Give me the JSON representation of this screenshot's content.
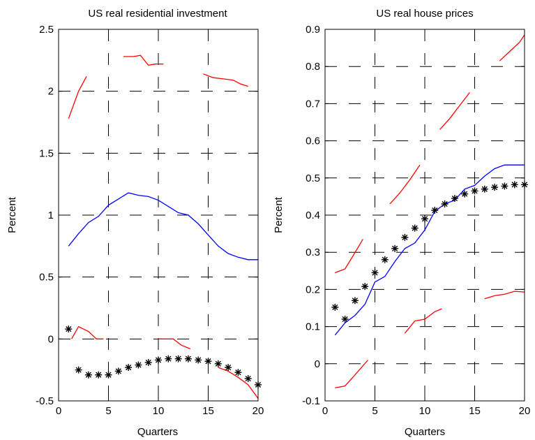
{
  "chart_data": [
    {
      "type": "line",
      "title": "US real residential investment",
      "xlabel": "Quarters",
      "ylabel": "Percent",
      "xlim": [
        0,
        20
      ],
      "ylim": [
        -0.5,
        2.5
      ],
      "xticks": [
        "0",
        "5",
        "10",
        "15",
        "20"
      ],
      "yticks": [
        "-0.5",
        "0",
        "0.5",
        "1",
        "1.5",
        "2",
        "2.5"
      ],
      "xtick_values": [
        0,
        5,
        10,
        15,
        20
      ],
      "ytick_values": [
        -0.5,
        0,
        0.5,
        1,
        1.5,
        2,
        2.5
      ],
      "grid": true,
      "colors": {
        "median": "#0000ff",
        "bands": "#ff0000",
        "markers": "#000000"
      },
      "series": [
        {
          "style": "blue-line",
          "x": [
            1,
            2,
            3,
            4,
            5,
            6,
            7,
            8,
            9,
            10,
            11,
            12,
            13,
            14,
            15,
            16,
            17,
            18,
            19,
            20
          ],
          "y": [
            0.75,
            0.85,
            0.94,
            0.99,
            1.08,
            1.13,
            1.18,
            1.16,
            1.15,
            1.12,
            1.07,
            1.02,
            1.0,
            0.93,
            0.84,
            0.75,
            0.69,
            0.66,
            0.64,
            0.64
          ]
        },
        {
          "style": "red-line",
          "segments": [
            {
              "x": [
                1,
                2,
                2.8
              ],
              "y": [
                1.78,
                2.0,
                2.12
              ]
            },
            {
              "x": [
                6.5,
                7.5,
                8.2,
                9,
                9.7,
                10.5
              ],
              "y": [
                2.28,
                2.28,
                2.29,
                2.21,
                2.22,
                2.22
              ]
            },
            {
              "x": [
                14.5,
                15.5,
                16.5,
                17.5,
                18.2,
                19
              ],
              "y": [
                2.14,
                2.11,
                2.1,
                2.09,
                2.06,
                2.04
              ]
            },
            {
              "x": [
                1.3,
                2,
                3,
                3.8,
                4.5
              ],
              "y": [
                0.0,
                0.1,
                0.06,
                0.0,
                0.0
              ]
            },
            {
              "x": [
                10,
                11,
                11.5,
                12.3,
                13.2
              ],
              "y": [
                0.0,
                0.0,
                0.0,
                -0.05,
                -0.08
              ]
            },
            {
              "x": [
                16,
                17,
                18,
                19,
                20
              ],
              "y": [
                -0.23,
                -0.26,
                -0.31,
                -0.37,
                -0.48
              ]
            }
          ]
        },
        {
          "style": "star-markers",
          "x": [
            1,
            2,
            3,
            4,
            5,
            6,
            7,
            8,
            9,
            10,
            11,
            12,
            13,
            14,
            15,
            16,
            17,
            18,
            19,
            20
          ],
          "y": [
            0.08,
            -0.25,
            -0.29,
            -0.29,
            -0.29,
            -0.26,
            -0.23,
            -0.21,
            -0.19,
            -0.17,
            -0.16,
            -0.16,
            -0.16,
            -0.17,
            -0.18,
            -0.2,
            -0.23,
            -0.27,
            -0.32,
            -0.37
          ]
        }
      ]
    },
    {
      "type": "line",
      "title": "US real house prices",
      "xlabel": "Quarters",
      "ylabel": "Percent",
      "xlim": [
        0,
        20
      ],
      "ylim": [
        -0.1,
        0.9
      ],
      "xticks": [
        "0",
        "5",
        "10",
        "15",
        "20"
      ],
      "yticks": [
        "-0.1",
        "0",
        "0.1",
        "0.2",
        "0.3",
        "0.4",
        "0.5",
        "0.6",
        "0.7",
        "0.8",
        "0.9"
      ],
      "xtick_values": [
        0,
        5,
        10,
        15,
        20
      ],
      "ytick_values": [
        -0.1,
        0,
        0.1,
        0.2,
        0.3,
        0.4,
        0.5,
        0.6,
        0.7,
        0.8,
        0.9
      ],
      "grid": true,
      "colors": {
        "median": "#0000ff",
        "bands": "#ff0000",
        "markers": "#000000"
      },
      "series": [
        {
          "style": "blue-line",
          "x": [
            1,
            2,
            3,
            4,
            5,
            6,
            7,
            8,
            9,
            10,
            11,
            12,
            13,
            14,
            15,
            16,
            17,
            18,
            19,
            20
          ],
          "y": [
            0.077,
            0.11,
            0.13,
            0.16,
            0.22,
            0.235,
            0.275,
            0.31,
            0.325,
            0.36,
            0.41,
            0.43,
            0.44,
            0.47,
            0.48,
            0.505,
            0.525,
            0.535,
            0.535,
            0.535
          ]
        },
        {
          "style": "red-line",
          "segments": [
            {
              "x": [
                1,
                2,
                2.8,
                3.8
              ],
              "y": [
                0.245,
                0.255,
                0.29,
                0.335
              ]
            },
            {
              "x": [
                6.5,
                7.5,
                8.5,
                9.5
              ],
              "y": [
                0.43,
                0.46,
                0.495,
                0.535
              ]
            },
            {
              "x": [
                11.5,
                12.5,
                13.5,
                14.5
              ],
              "y": [
                0.63,
                0.66,
                0.695,
                0.73
              ]
            },
            {
              "x": [
                17.5,
                18.5,
                19.5,
                20
              ],
              "y": [
                0.815,
                0.84,
                0.865,
                0.885
              ]
            },
            {
              "x": [
                1,
                2,
                3,
                4.3
              ],
              "y": [
                -0.065,
                -0.06,
                -0.03,
                0.01
              ]
            },
            {
              "x": [
                8,
                9,
                10,
                11,
                11.7
              ],
              "y": [
                0.082,
                0.115,
                0.12,
                0.14,
                0.148
              ]
            },
            {
              "x": [
                16,
                17,
                18,
                19,
                20
              ],
              "y": [
                0.175,
                0.183,
                0.187,
                0.195,
                0.193
              ]
            }
          ]
        },
        {
          "style": "star-markers",
          "x": [
            1,
            2,
            3,
            4,
            5,
            6,
            7,
            8,
            9,
            10,
            11,
            12,
            13,
            14,
            15,
            16,
            17,
            18,
            19,
            20
          ],
          "y": [
            0.152,
            0.12,
            0.17,
            0.208,
            0.245,
            0.28,
            0.31,
            0.34,
            0.365,
            0.39,
            0.413,
            0.43,
            0.445,
            0.457,
            0.465,
            0.47,
            0.475,
            0.478,
            0.482,
            0.482
          ]
        }
      ]
    }
  ]
}
